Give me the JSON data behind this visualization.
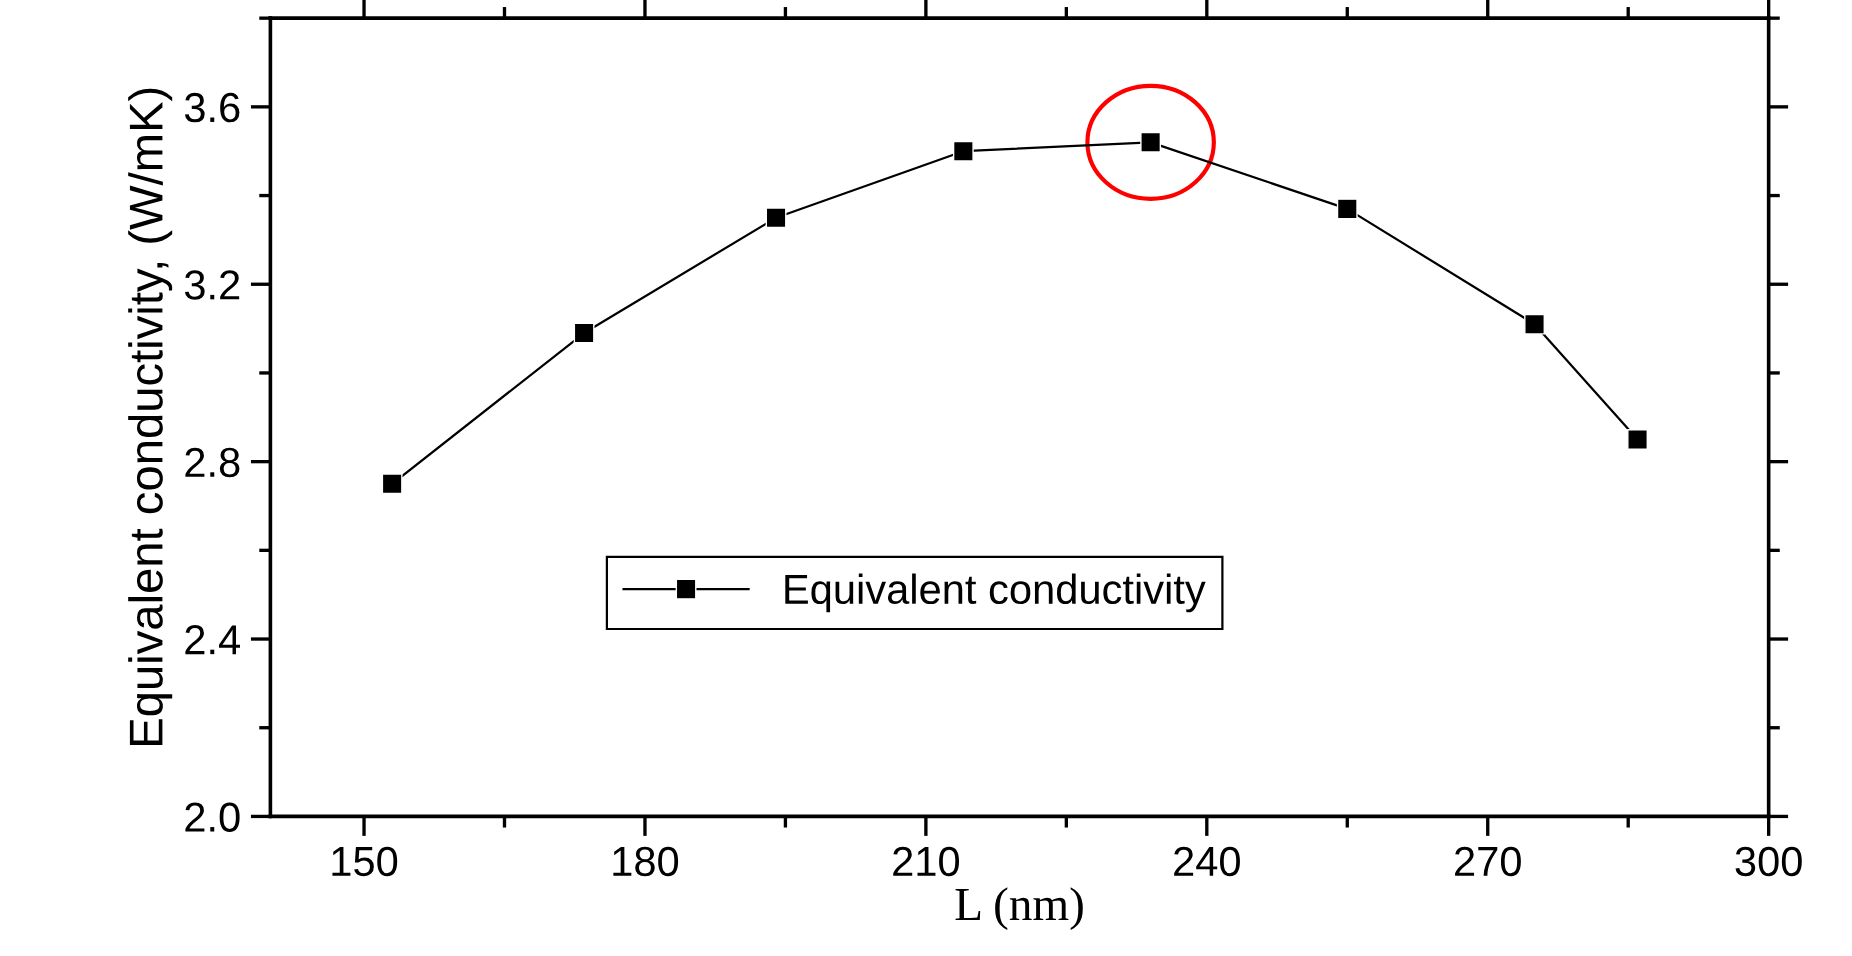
{
  "chart_data": {
    "type": "line",
    "xlabel": "L (nm)",
    "ylabel": "Equivalent conductivity, (W/mK)",
    "x": [
      153,
      173.5,
      194,
      214,
      234,
      255,
      275,
      286
    ],
    "series": [
      {
        "name": "Equivalent conductivity",
        "color": "#000000",
        "values": [
          2.75,
          3.09,
          3.35,
          3.5,
          3.52,
          3.37,
          3.11,
          2.85
        ]
      }
    ],
    "xlim": [
      140,
      300
    ],
    "xticks": [
      150,
      180,
      210,
      240,
      270,
      300
    ],
    "ylim": [
      2.0,
      3.8
    ],
    "yticks": [
      {
        "value": 2,
        "label": "2.0"
      },
      2.4,
      2.8,
      3.2,
      3.6
    ],
    "marker": "square",
    "line_style": "solid",
    "grid": false,
    "legend": "lower center"
  }
}
